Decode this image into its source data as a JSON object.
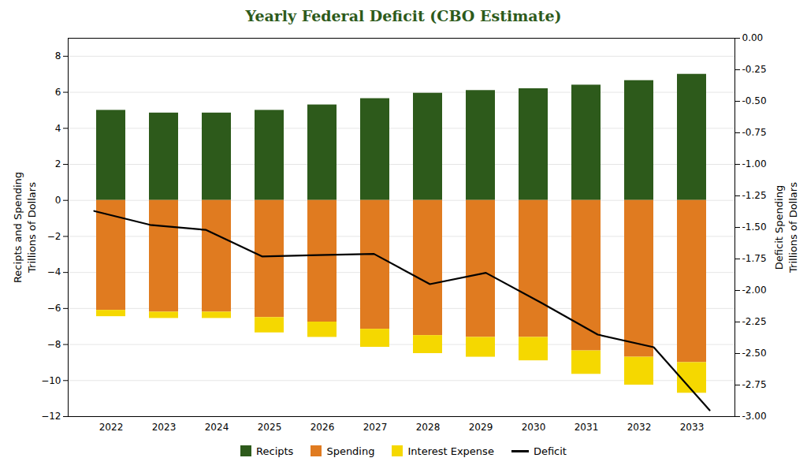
{
  "chart_data": {
    "type": "bar",
    "title": "Yearly Federal Deficit (CBO Estimate)",
    "categories": [
      "2022",
      "2023",
      "2024",
      "2025",
      "2026",
      "2027",
      "2028",
      "2029",
      "2030",
      "2031",
      "2032",
      "2033"
    ],
    "series": [
      {
        "name": "Recipts",
        "color": "#2d5a1b",
        "values": [
          5.0,
          4.85,
          4.85,
          5.0,
          5.3,
          5.65,
          5.95,
          6.1,
          6.2,
          6.4,
          6.65,
          7.0
        ]
      },
      {
        "name": "Spending",
        "color": "#e07b20",
        "values": [
          -6.1,
          -6.2,
          -6.2,
          -6.5,
          -6.75,
          -7.15,
          -7.5,
          -7.6,
          -7.6,
          -8.35,
          -8.7,
          -9.0
        ]
      },
      {
        "name": "Interest Expense",
        "color": "#f5d800",
        "values": [
          -0.35,
          -0.35,
          -0.35,
          -0.85,
          -0.85,
          -1.0,
          -1.0,
          -1.1,
          -1.3,
          -1.3,
          -1.55,
          -1.7
        ]
      },
      {
        "name": "Deficit",
        "type": "line",
        "axis": "y2",
        "color": "#000000",
        "values": [
          -1.37,
          -1.48,
          -1.52,
          -1.73,
          -1.72,
          -1.71,
          -1.95,
          -1.86,
          -2.1,
          -2.35,
          -2.45,
          -2.95
        ]
      }
    ],
    "stacked": true,
    "ylim": [
      -12,
      9
    ],
    "yticks": [
      -12,
      -10,
      -8,
      -6,
      -4,
      -2,
      0,
      2,
      4,
      6,
      8
    ],
    "y2lim": [
      -3.0,
      0.0
    ],
    "y2ticks": [
      {
        "value": -3.0,
        "label": "-3.00"
      },
      {
        "value": -2.75,
        "label": "-2.75"
      },
      {
        "value": -2.5,
        "label": "-2.50"
      },
      {
        "value": -2.25,
        "label": "-2.25"
      },
      {
        "value": -2.0,
        "label": "-2.00"
      },
      {
        "value": -1.75,
        "label": "-1.75"
      },
      {
        "value": -1.5,
        "label": "-1.50"
      },
      {
        "value": -1.25,
        "label": "-1.25"
      },
      {
        "value": -1.0,
        "label": "-1.00"
      },
      {
        "value": -0.75,
        "label": "-0.75"
      },
      {
        "value": -0.5,
        "label": "-0.50"
      },
      {
        "value": -0.25,
        "label": "-0.25"
      },
      {
        "value": 0.0,
        "label": "0.00"
      }
    ],
    "ylabel": [
      "Recipts and Spending",
      "Trillions of Dollars"
    ],
    "y2label": [
      "Trillions of Dollars",
      "Deficit Spending"
    ],
    "grid": true,
    "legend": "bottom"
  }
}
